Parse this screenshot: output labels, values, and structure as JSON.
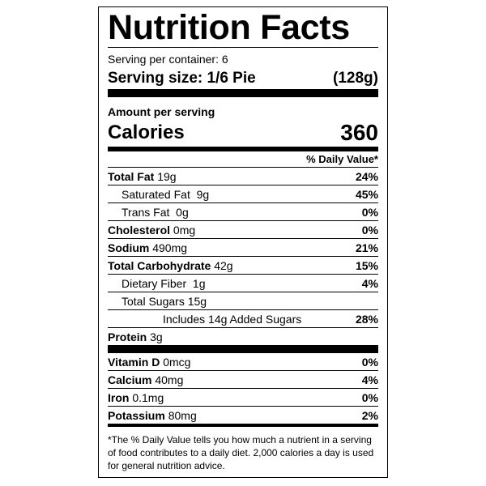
{
  "label": {
    "title": "Nutrition Facts",
    "servings_per_container": "Serving per container: 6",
    "serving_size": {
      "label": "Serving size: 1/6 Pie",
      "amount": "(128g)"
    },
    "amount_per_serving": "Amount per serving",
    "calories": {
      "label": "Calories",
      "value": "360"
    },
    "daily_value_header": "% Daily Value*",
    "nutrients": [
      {
        "name": "Total Fat",
        "amount": "19g",
        "dv": "24%"
      },
      {
        "name": "Saturated Fat",
        "amount": "9g",
        "dv": "45%"
      },
      {
        "name": "Trans Fat",
        "amount": "0g",
        "dv": "0%"
      },
      {
        "name": "Cholesterol",
        "amount": "0mg",
        "dv": "0%"
      },
      {
        "name": "Sodium",
        "amount": "490mg",
        "dv": "21%"
      },
      {
        "name": "Total Carbohydrate",
        "amount": "42g",
        "dv": "15%"
      },
      {
        "name": "Dietary Fiber",
        "amount": "1g",
        "dv": "4%"
      },
      {
        "name": "Total Sugars",
        "amount": "15g"
      },
      {
        "name": "Includes 14g Added Sugars",
        "dv": "28%"
      },
      {
        "name": "Protein",
        "amount": "3g"
      }
    ],
    "vitamins": [
      {
        "name": "Vitamin D",
        "amount": "0mcg",
        "dv": "0%"
      },
      {
        "name": "Calcium",
        "amount": "40mg",
        "dv": "4%"
      },
      {
        "name": "Iron",
        "amount": "0.1mg",
        "dv": "0%"
      },
      {
        "name": "Potassium",
        "amount": "80mg",
        "dv": "2%"
      }
    ],
    "footnote": "*The % Daily Value tells you how much a nutrient in a serving of food contributes to a daily diet. 2,000 calories a day is used for general nutrition advice."
  }
}
